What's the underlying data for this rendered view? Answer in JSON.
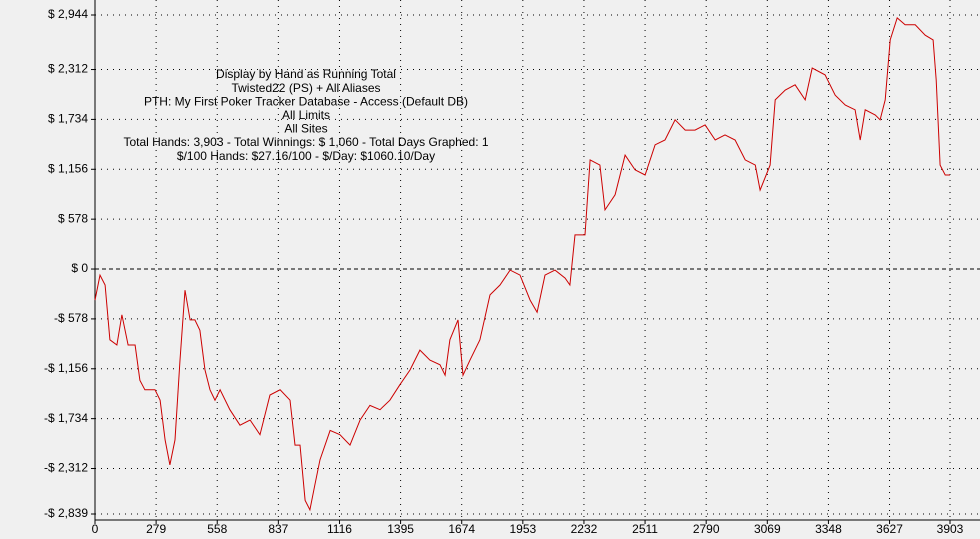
{
  "chart_data": {
    "type": "line",
    "annotations": [
      "Display by Hand as Running Total",
      "Twisted22 (PS) + All Aliases",
      "PTH: My First Poker Tracker Database - Access (Default DB)",
      "All Limits",
      "All Sites",
      "Total Hands: 3,903 - Total Winnings: $ 1,060 - Total Days Graphed: 1",
      "$/100 Hands: $27.16/100 - $/Day: $1060.10/Day"
    ],
    "color": "#cc0000",
    "grid": true,
    "zero_line": true,
    "xlim": [
      0,
      3903
    ],
    "xticks": [
      0,
      279,
      558,
      837,
      1116,
      1395,
      1674,
      1953,
      2232,
      2511,
      2790,
      3069,
      3348,
      3627,
      3903
    ],
    "ylim": [
      -2839,
      2944
    ],
    "yticks": [
      {
        "value": 2944,
        "label": "$ 2,944"
      },
      {
        "value": 2312,
        "label": "$ 2,312"
      },
      {
        "value": 1734,
        "label": "$ 1,734"
      },
      {
        "value": 1156,
        "label": "$ 1,156"
      },
      {
        "value": 578,
        "label": "$ 578"
      },
      {
        "value": 0,
        "label": "$ 0"
      },
      {
        "value": -578,
        "label": "-$ 578"
      },
      {
        "value": -1156,
        "label": "-$ 1,156"
      },
      {
        "value": -1734,
        "label": "-$ 1,734"
      },
      {
        "value": -2312,
        "label": "-$ 2,312"
      },
      {
        "value": -2839,
        "label": "-$ 2,839"
      }
    ],
    "x": [
      0,
      23,
      46,
      68,
      100,
      123,
      151,
      183,
      205,
      228,
      274,
      297,
      320,
      342,
      365,
      388,
      411,
      434,
      456,
      479,
      502,
      525,
      548,
      571,
      616,
      662,
      708,
      753,
      799,
      845,
      890,
      913,
      936,
      959,
      981,
      1004,
      1027,
      1073,
      1118,
      1164,
      1210,
      1255,
      1301,
      1346,
      1392,
      1438,
      1483,
      1529,
      1575,
      1598,
      1620,
      1657,
      1680,
      1712,
      1757,
      1803,
      1849,
      1895,
      1940,
      1986,
      2018,
      2054,
      2100,
      2146,
      2168,
      2191,
      2237,
      2260,
      2305,
      2328,
      2374,
      2420,
      2465,
      2511,
      2557,
      2602,
      2648,
      2694,
      2739,
      2785,
      2831,
      2876,
      2922,
      2968,
      3014,
      3036,
      3082,
      3105,
      3151,
      3196,
      3242,
      3274,
      3333,
      3379,
      3425,
      3470,
      3493,
      3516,
      3562,
      3584,
      3607,
      3630,
      3662,
      3698,
      3744,
      3790,
      3826,
      3840,
      3858,
      3881,
      3903
    ],
    "values": [
      -360,
      -70,
      -185,
      -820,
      -880,
      -530,
      -880,
      -880,
      -1290,
      -1400,
      -1400,
      -1520,
      -1980,
      -2270,
      -1980,
      -1055,
      -245,
      -590,
      -590,
      -710,
      -1170,
      -1400,
      -1520,
      -1400,
      -1630,
      -1810,
      -1750,
      -1920,
      -1460,
      -1400,
      -1520,
      -2040,
      -2040,
      -2680,
      -2790,
      -2500,
      -2210,
      -1870,
      -1920,
      -2040,
      -1750,
      -1580,
      -1630,
      -1520,
      -1340,
      -1170,
      -940,
      -1055,
      -1110,
      -1230,
      -820,
      -590,
      -1230,
      -1055,
      -820,
      -300,
      -185,
      -12,
      -70,
      -360,
      -500,
      -70,
      -12,
      -105,
      -185,
      395,
      395,
      1265,
      1205,
      685,
      860,
      1320,
      1150,
      1090,
      1440,
      1495,
      1730,
      1610,
      1610,
      1670,
      1495,
      1555,
      1495,
      1265,
      1205,
      915,
      1205,
      1960,
      2075,
      2135,
      1960,
      2330,
      2250,
      2015,
      1900,
      1845,
      1495,
      1845,
      1785,
      1730,
      1960,
      2655,
      2910,
      2830,
      2830,
      2710,
      2655,
      2190,
      1205,
      1090,
      1090
    ]
  }
}
